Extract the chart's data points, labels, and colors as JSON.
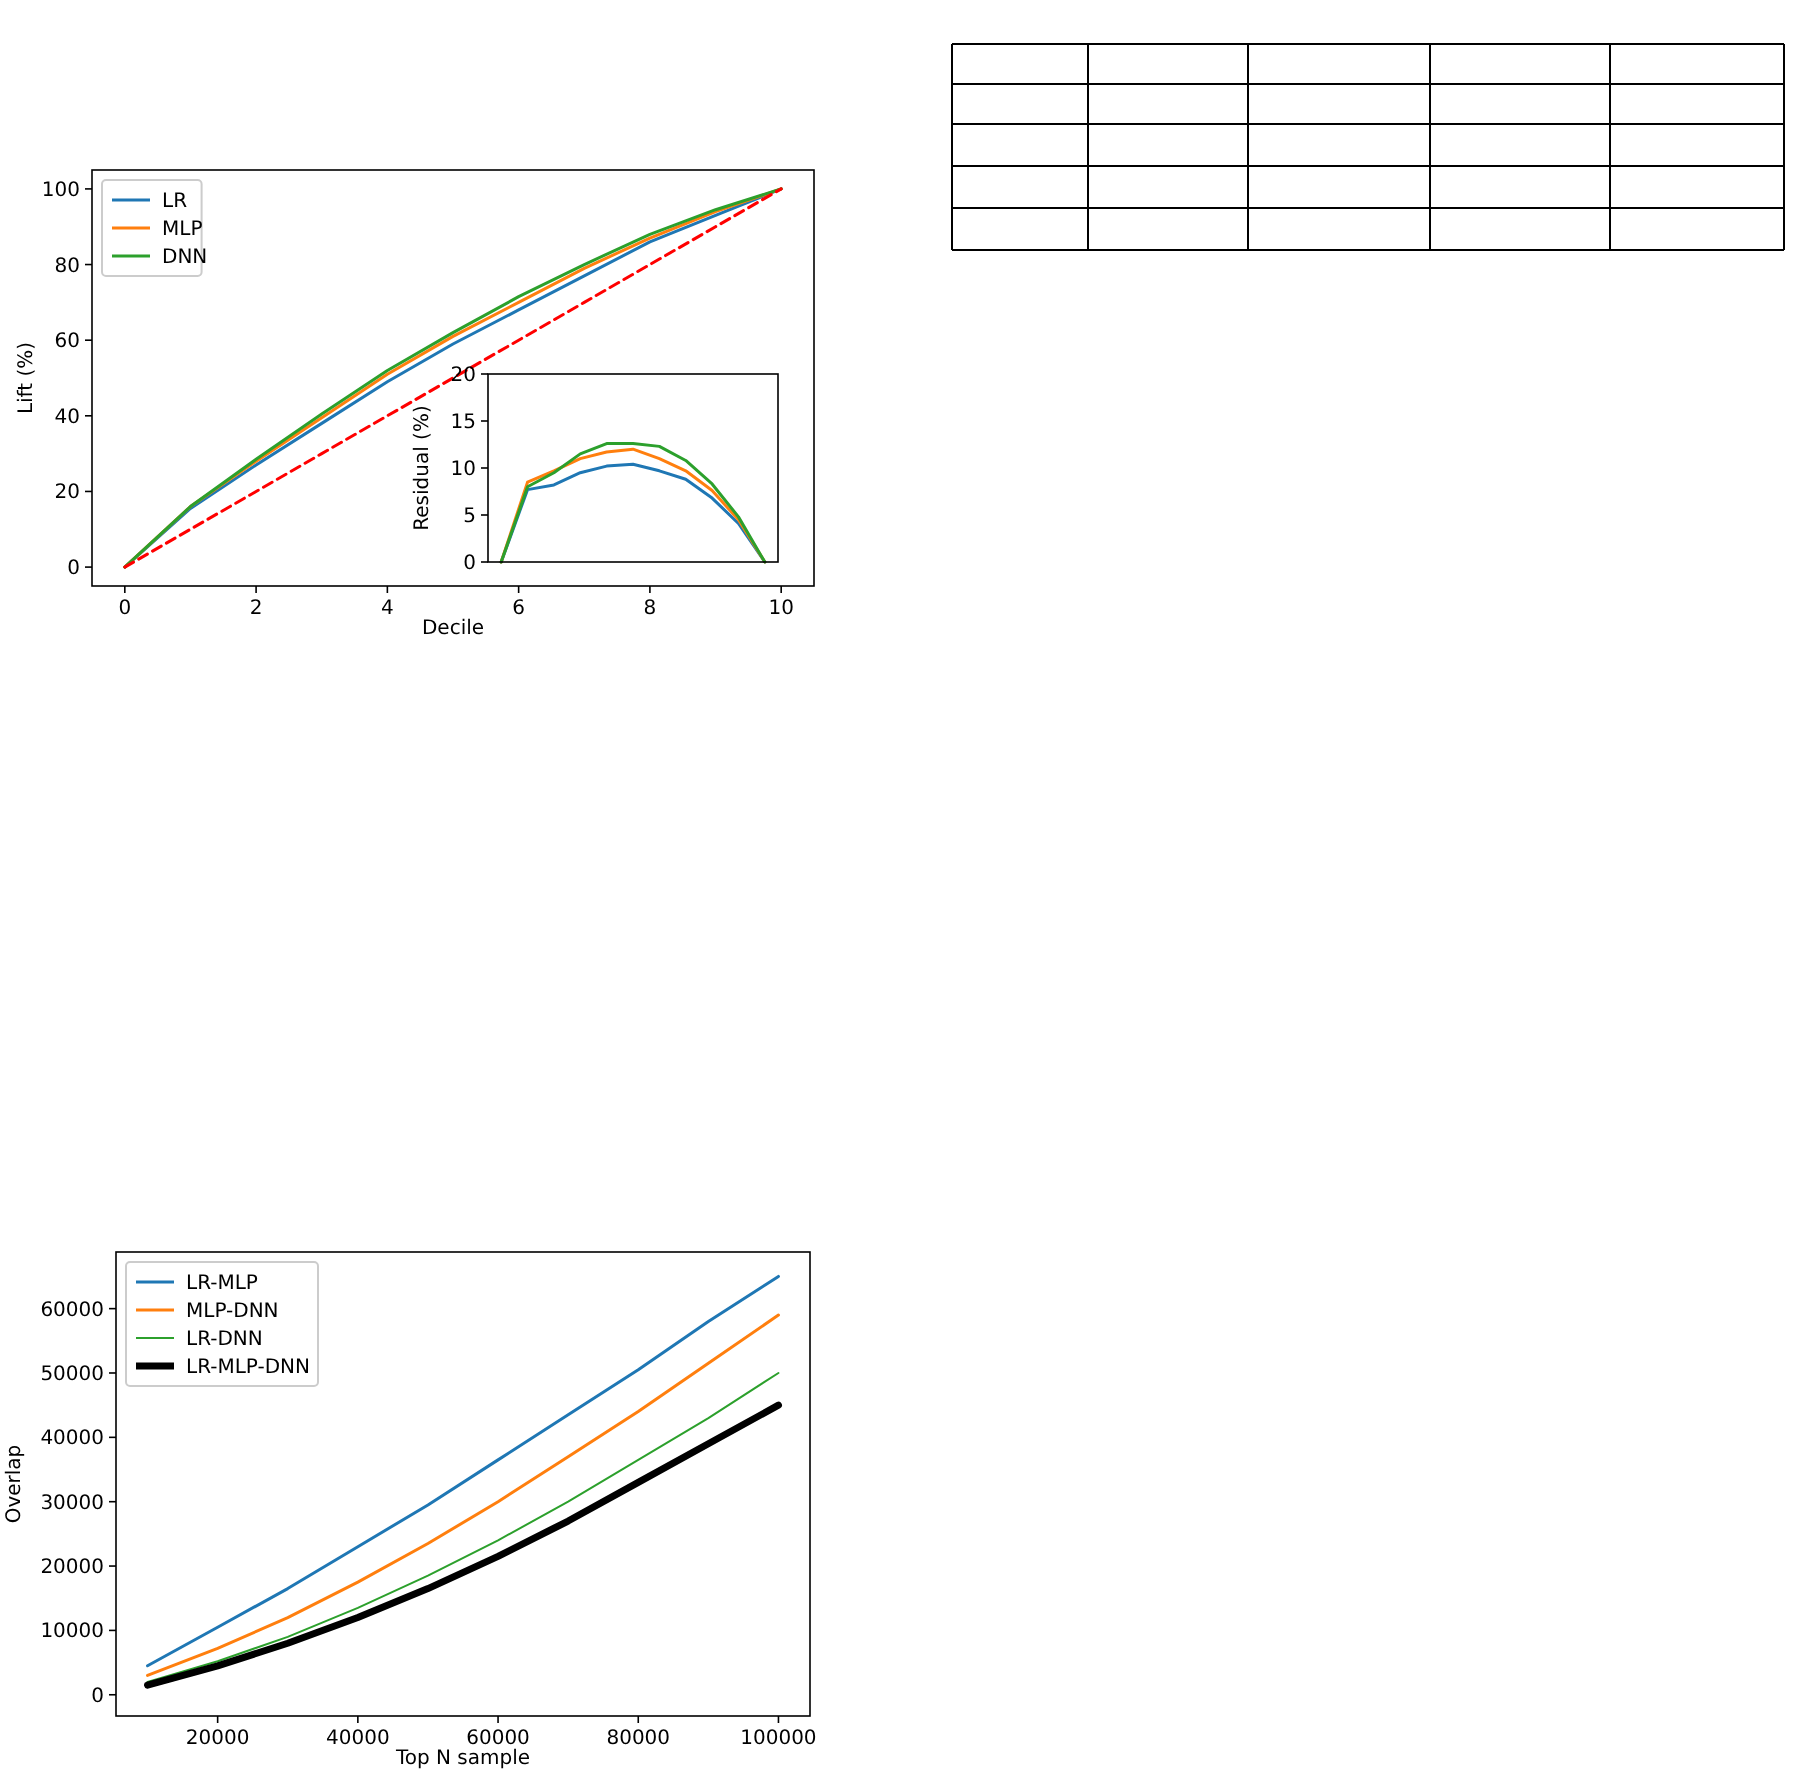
{
  "chart_data": [
    {
      "type": "line",
      "xlabel": "Decile",
      "ylabel": "Lift (%)",
      "x": [
        0,
        1,
        2,
        3,
        4,
        5,
        6,
        7,
        8,
        9,
        10
      ],
      "xlim": [
        -0.5,
        10.5
      ],
      "ylim": [
        -5,
        105
      ],
      "xticks": [
        0,
        2,
        4,
        6,
        8,
        10
      ],
      "yticks": [
        0,
        20,
        40,
        60,
        80,
        100
      ],
      "legend": "top left",
      "series": [
        {
          "name": "LR",
          "color": "#1f77b4",
          "values": [
            0,
            15.5,
            27,
            38,
            49,
            59,
            68,
            77,
            86,
            93,
            100
          ]
        },
        {
          "name": "MLP",
          "color": "#ff7f0e",
          "values": [
            0,
            16,
            28,
            39.5,
            51,
            61,
            70,
            79,
            87,
            94,
            100
          ]
        },
        {
          "name": "DNN",
          "color": "#2ca02c",
          "values": [
            0,
            16,
            28.5,
            40.5,
            52,
            62,
            71.5,
            80,
            88,
            94.5,
            100
          ]
        },
        {
          "color": "#ff0000",
          "line_style": "dashed",
          "values": [
            0,
            10,
            20,
            30,
            40,
            50,
            60,
            70,
            80,
            90,
            100
          ]
        }
      ]
    },
    {
      "type": "line",
      "ylabel": "Residual (%)",
      "categories": [
        null,
        null,
        null,
        null,
        null,
        null,
        null,
        null,
        null,
        null,
        null
      ],
      "ylim": [
        0,
        20
      ],
      "yticks": [
        0,
        5,
        10,
        15,
        20
      ],
      "series": [
        {
          "color": "#1f77b4",
          "values": [
            0,
            7.7,
            8.2,
            9.5,
            10.2,
            10.4,
            9.7,
            8.8,
            6.8,
            4.1,
            0
          ]
        },
        {
          "color": "#ff7f0e",
          "values": [
            0,
            8.5,
            9.7,
            11,
            11.7,
            12,
            11,
            9.7,
            7.6,
            4.5,
            0
          ]
        },
        {
          "color": "#2ca02c",
          "values": [
            0,
            8,
            9.5,
            11.5,
            12.6,
            12.6,
            12.3,
            10.8,
            8.3,
            4.8,
            0
          ]
        }
      ]
    },
    {
      "type": "line",
      "xlabel": "Top N sample",
      "ylabel": "Overlap",
      "x": [
        10000,
        20000,
        30000,
        40000,
        50000,
        60000,
        70000,
        80000,
        90000,
        100000
      ],
      "xlim": [
        5500,
        104500
      ],
      "ylim": [
        -3300,
        68800
      ],
      "xticks": [
        20000,
        40000,
        60000,
        80000,
        100000
      ],
      "yticks": [
        0,
        10000,
        20000,
        30000,
        40000,
        50000,
        60000
      ],
      "legend": "top left",
      "series": [
        {
          "name": "LR-MLP",
          "color": "#1f77b4",
          "values": [
            4500,
            10500,
            16500,
            23000,
            29500,
            36500,
            43500,
            50500,
            58000,
            65000
          ]
        },
        {
          "name": "MLP-DNN",
          "color": "#ff7f0e",
          "values": [
            3000,
            7200,
            12000,
            17500,
            23500,
            30000,
            37000,
            44000,
            51500,
            59000
          ]
        },
        {
          "name": "LR-DNN",
          "color": "#2ca02c",
          "values": [
            2000,
            5200,
            9000,
            13500,
            18500,
            24000,
            30000,
            36500,
            43000,
            50000
          ]
        },
        {
          "name": "LR-MLP-DNN",
          "color": "#000000",
          "values": [
            1500,
            4500,
            8000,
            12000,
            16500,
            21500,
            27000,
            33000,
            39000,
            45000
          ]
        }
      ]
    }
  ]
}
